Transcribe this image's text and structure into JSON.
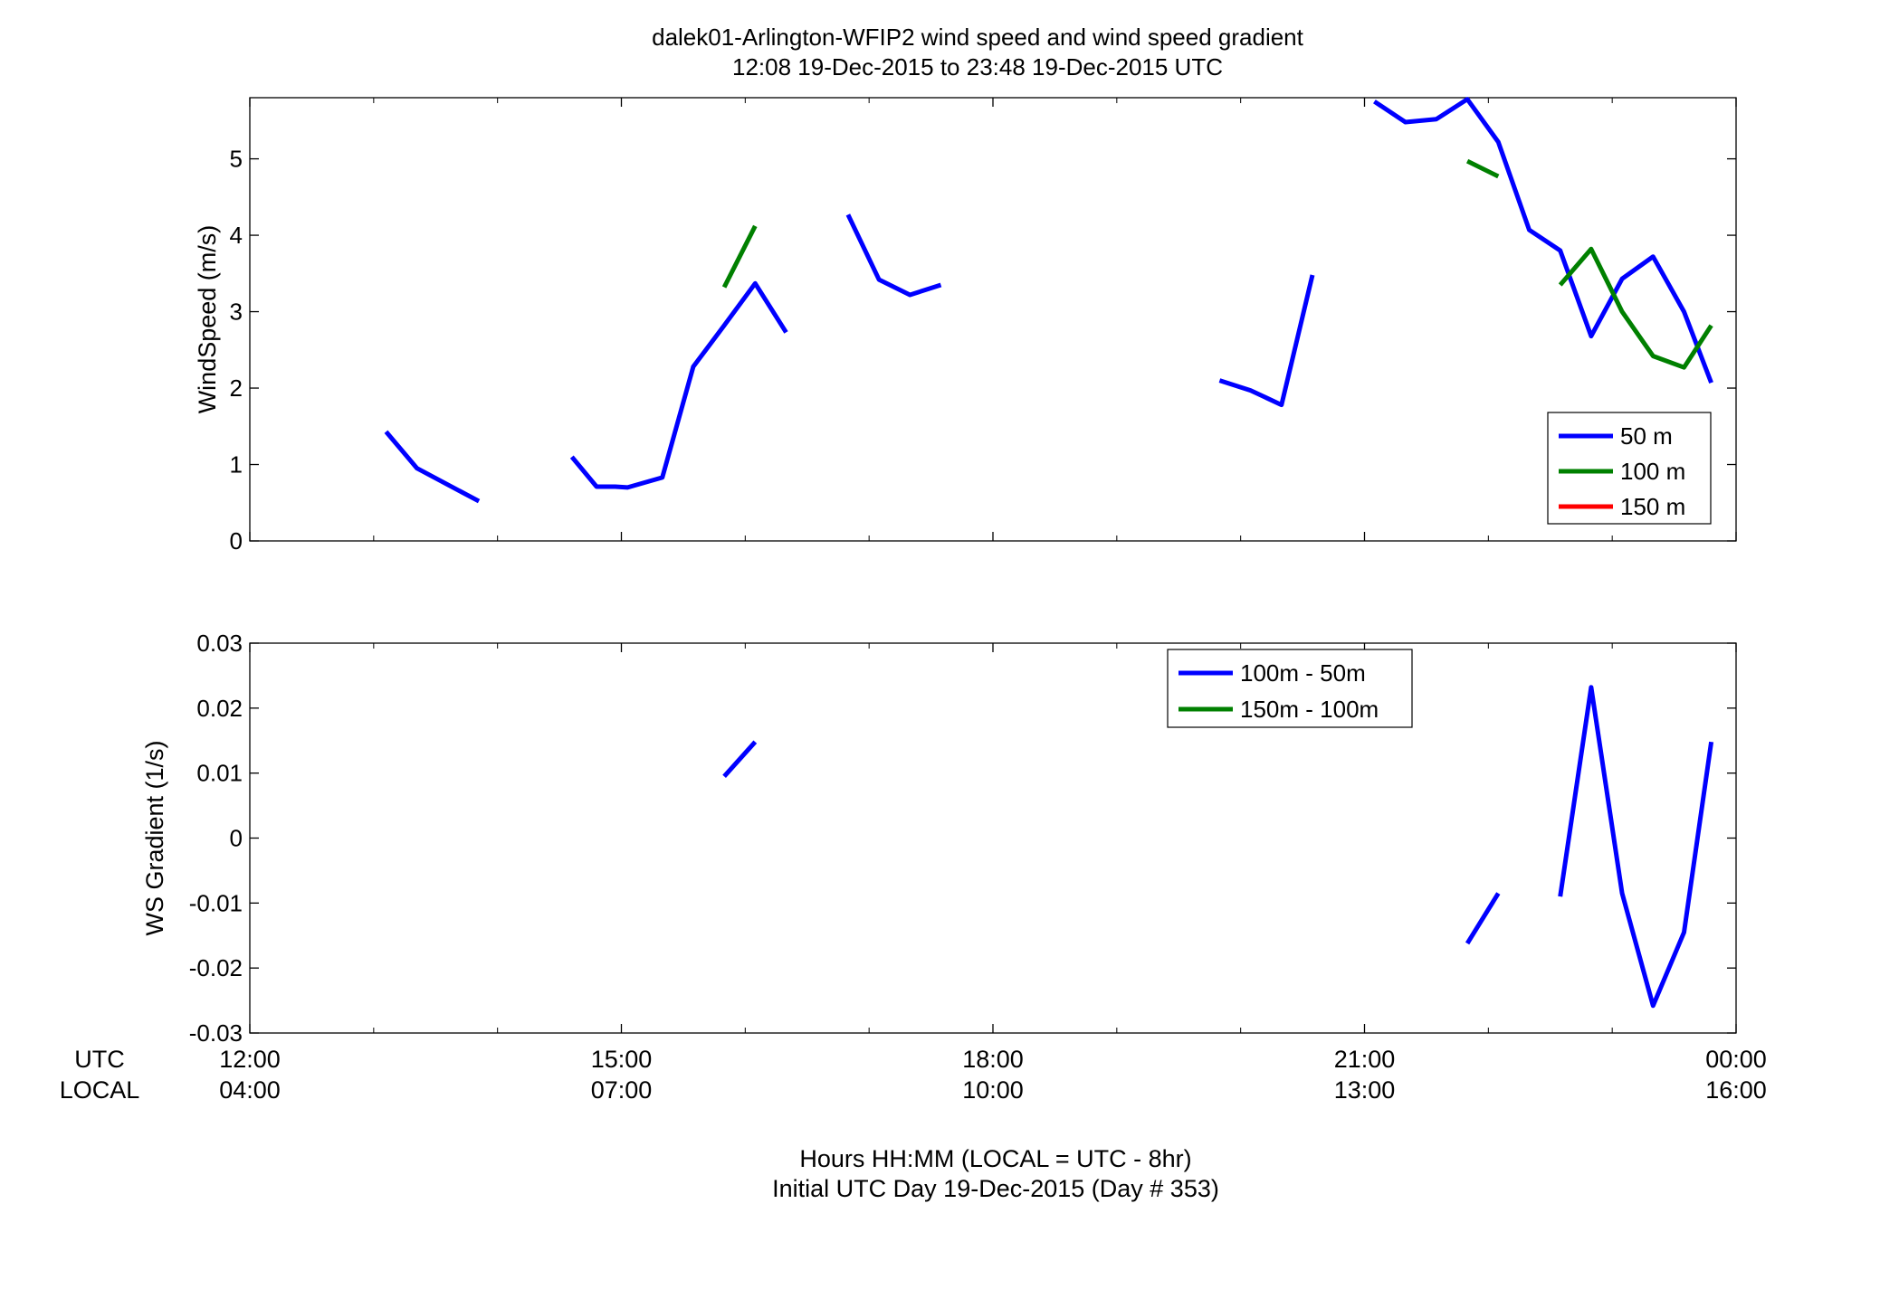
{
  "title": "dalek01-Arlington-WFIP2  wind speed and wind speed gradient",
  "subtitle": "12:08 19-Dec-2015 to 23:48 19-Dec-2015  UTC",
  "row_labels": {
    "utc": "UTC",
    "local": "LOCAL"
  },
  "xlabel_line1": "Hours HH:MM  (LOCAL = UTC - 8hr)",
  "xlabel_line2": "Initial UTC Day 19-Dec-2015 (Day # 353)",
  "x_ticks_utc": [
    "12:00",
    "15:00",
    "18:00",
    "21:00",
    "00:00"
  ],
  "x_ticks_local": [
    "04:00",
    "07:00",
    "10:00",
    "13:00",
    "16:00"
  ],
  "chart_data": [
    {
      "type": "line",
      "ylabel": "WindSpeed (m/s)",
      "xlim": [
        12,
        24
      ],
      "ylim": [
        0,
        5.8
      ],
      "yticks": [
        0,
        1,
        2,
        3,
        4,
        5
      ],
      "y_tick_labels": [
        "0",
        "1",
        "2",
        "3",
        "4",
        "5"
      ],
      "x_units": "hours UTC",
      "legend": {
        "placement": "bottom-right"
      },
      "series": [
        {
          "name": "50 m",
          "color": "#0000ff",
          "segments": [
            [
              [
                13.1,
                1.43
              ],
              [
                13.35,
                0.95
              ],
              [
                13.85,
                0.52
              ]
            ],
            [
              [
                14.6,
                1.1
              ],
              [
                14.8,
                0.71
              ],
              [
                14.95,
                0.71
              ],
              [
                15.05,
                0.7
              ],
              [
                15.33,
                0.83
              ],
              [
                15.58,
                2.28
              ],
              [
                15.83,
                2.82
              ],
              [
                16.08,
                3.37
              ],
              [
                16.33,
                2.73
              ]
            ],
            [
              [
                16.83,
                4.27
              ],
              [
                17.08,
                3.42
              ],
              [
                17.33,
                3.22
              ],
              [
                17.58,
                3.35
              ]
            ],
            [
              [
                19.83,
                2.1
              ],
              [
                20.08,
                1.97
              ],
              [
                20.33,
                1.78
              ],
              [
                20.58,
                3.48
              ]
            ],
            [
              [
                21.08,
                5.75
              ],
              [
                21.33,
                5.48
              ],
              [
                21.58,
                5.52
              ],
              [
                21.83,
                5.78
              ],
              [
                22.08,
                5.22
              ],
              [
                22.33,
                4.07
              ],
              [
                22.58,
                3.8
              ],
              [
                22.83,
                2.68
              ],
              [
                23.08,
                3.43
              ],
              [
                23.33,
                3.72
              ],
              [
                23.58,
                3.0
              ],
              [
                23.8,
                2.07
              ]
            ]
          ]
        },
        {
          "name": "100 m",
          "color": "#008000",
          "segments": [
            [
              [
                15.83,
                3.32
              ],
              [
                16.08,
                4.12
              ]
            ],
            [
              [
                21.83,
                4.97
              ],
              [
                22.08,
                4.77
              ]
            ],
            [
              [
                22.58,
                3.35
              ],
              [
                22.83,
                3.82
              ],
              [
                23.08,
                3.0
              ],
              [
                23.33,
                2.42
              ],
              [
                23.58,
                2.27
              ],
              [
                23.8,
                2.82
              ]
            ]
          ]
        },
        {
          "name": "150 m",
          "color": "#ff0000",
          "segments": []
        }
      ]
    },
    {
      "type": "line",
      "ylabel": "WS Gradient (1/s)",
      "xlim": [
        12,
        24
      ],
      "ylim": [
        -0.03,
        0.03
      ],
      "yticks": [
        -0.03,
        -0.02,
        -0.01,
        0,
        0.01,
        0.02,
        0.03
      ],
      "y_tick_labels": [
        "-0.03",
        "-0.02",
        "-0.01",
        "0",
        "0.01",
        "0.02",
        "0.03"
      ],
      "x_units": "hours UTC",
      "legend": {
        "placement": "top-center"
      },
      "series": [
        {
          "name": "100m - 50m",
          "color": "#0000ff",
          "segments": [
            [
              [
                15.83,
                0.0095
              ],
              [
                16.08,
                0.0148
              ]
            ],
            [
              [
                21.83,
                -0.0162
              ],
              [
                22.08,
                -0.0085
              ]
            ],
            [
              [
                22.58,
                -0.009
              ],
              [
                22.83,
                0.0232
              ],
              [
                23.08,
                -0.0085
              ],
              [
                23.33,
                -0.0258
              ],
              [
                23.58,
                -0.0145
              ],
              [
                23.8,
                0.0148
              ]
            ]
          ]
        },
        {
          "name": "150m - 100m",
          "color": "#008000",
          "segments": []
        }
      ]
    }
  ]
}
